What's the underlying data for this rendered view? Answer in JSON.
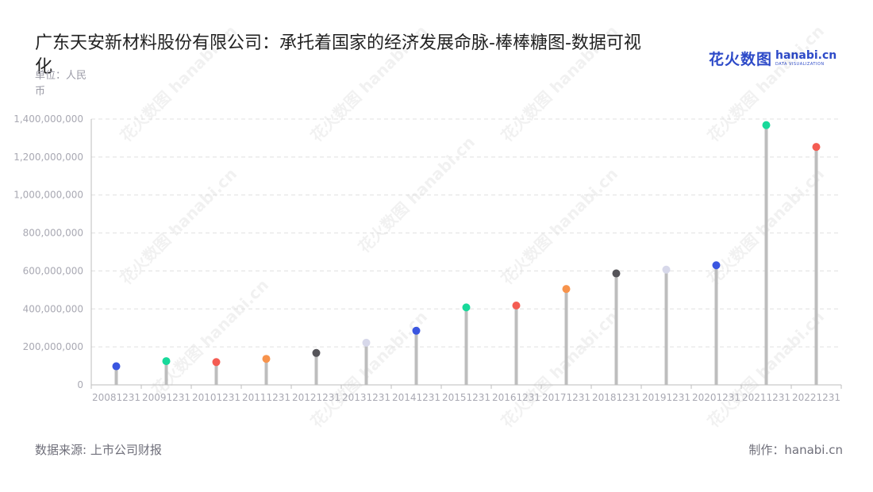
{
  "header": {
    "title": "广东天安新材料股份有限公司：承托着国家的经济发展命脉-棒棒糖图-数据可视化",
    "unit": "单位：人民币"
  },
  "logo": {
    "cn": "花火数图",
    "en": "hanabi.cn",
    "en_sub": "DATA VISUALIZATION"
  },
  "footer": {
    "source": "数据来源: 上市公司财报",
    "credit": "制作：hanabi.cn"
  },
  "watermark": "花火数图 hanabi.cn",
  "colors": {
    "stem": "#bdbdbd",
    "grid": "#e0e0e0",
    "axis": "#bdbdbd",
    "dot_palette": [
      "#3a56e0",
      "#18d99a",
      "#f45c52",
      "#f7934c",
      "#555459",
      "#d7d8ea"
    ]
  },
  "chart_data": {
    "type": "lollipop",
    "categories": [
      "20081231",
      "20091231",
      "20101231",
      "20111231",
      "20121231",
      "20131231",
      "20141231",
      "20151231",
      "20161231",
      "20171231",
      "20181231",
      "20191231",
      "20201231",
      "20211231",
      "20221231"
    ],
    "values": [
      98000000,
      125000000,
      120000000,
      137000000,
      168000000,
      222000000,
      285000000,
      408000000,
      418000000,
      505000000,
      587000000,
      607000000,
      630000000,
      1368000000,
      1253000000
    ],
    "y_ticks": [
      0,
      200000000,
      400000000,
      600000000,
      800000000,
      1000000000,
      1200000000,
      1400000000
    ],
    "y_tick_labels": [
      "0",
      "200,000,000",
      "400,000,000",
      "600,000,000",
      "800,000,000",
      "1,000,000,000",
      "1,200,000,000",
      "1,400,000,000"
    ],
    "ylim": [
      0,
      1400000000
    ],
    "grid": true,
    "legend": "none"
  }
}
